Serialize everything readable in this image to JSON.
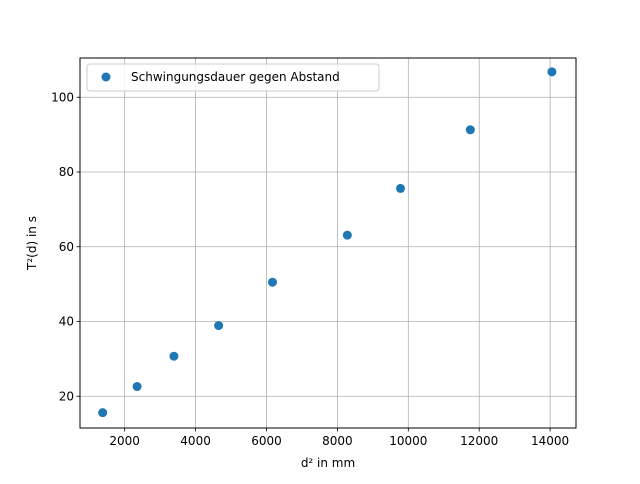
{
  "chart_data": {
    "type": "scatter",
    "xlabel": "d² in mm",
    "ylabel": "T²(d) in s",
    "xlim": [
      740,
      14730
    ],
    "ylim": [
      11.5,
      110.5
    ],
    "xticks": [
      2000,
      4000,
      6000,
      8000,
      10000,
      12000,
      14000
    ],
    "yticks": [
      20,
      40,
      60,
      80,
      100
    ],
    "grid": true,
    "legend_position": "upper-left",
    "series": [
      {
        "name": "Schwingungsdauer gegen Abstand",
        "color": "#1f77b4",
        "marker": "circle",
        "points": [
          {
            "x": 1380,
            "y": 15.6
          },
          {
            "x": 2350,
            "y": 22.6
          },
          {
            "x": 3390,
            "y": 30.7
          },
          {
            "x": 4650,
            "y": 38.9
          },
          {
            "x": 6170,
            "y": 50.5
          },
          {
            "x": 8280,
            "y": 63.1
          },
          {
            "x": 9780,
            "y": 75.6
          },
          {
            "x": 11750,
            "y": 91.3
          },
          {
            "x": 14050,
            "y": 106.8
          }
        ]
      }
    ]
  }
}
